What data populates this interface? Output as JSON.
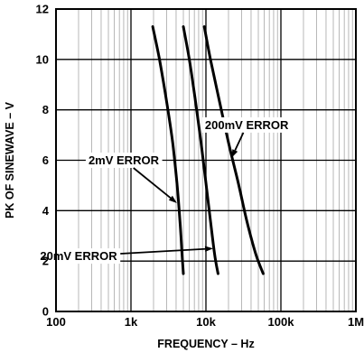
{
  "chart_data": {
    "type": "line",
    "title": "",
    "xlabel": "FREQUENCY – Hz",
    "ylabel": "PK OF SINEWAVE – V",
    "xscale": "log",
    "xlim": [
      100,
      1000000
    ],
    "ylim": [
      0,
      12
    ],
    "grid": true,
    "x_tick_labels": [
      {
        "value": 100,
        "label": "100"
      },
      {
        "value": 1000,
        "label": "1k"
      },
      {
        "value": 10000,
        "label": "10k"
      },
      {
        "value": 100000,
        "label": "100k"
      },
      {
        "value": 1000000,
        "label": "1M"
      }
    ],
    "y_tick_labels": [
      {
        "value": 0,
        "label": "0"
      },
      {
        "value": 2,
        "label": "2"
      },
      {
        "value": 4,
        "label": "4"
      },
      {
        "value": 6,
        "label": "6"
      },
      {
        "value": 8,
        "label": "8"
      },
      {
        "value": 10,
        "label": "10"
      },
      {
        "value": 12,
        "label": "12"
      }
    ],
    "series": [
      {
        "name": "2mV ERROR",
        "points": [
          [
            1950,
            11.3
          ],
          [
            2400,
            10
          ],
          [
            3000,
            8.3
          ],
          [
            3600,
            6.7
          ],
          [
            4100,
            5.1
          ],
          [
            4500,
            3.6
          ],
          [
            4800,
            2.3
          ],
          [
            5000,
            1.5
          ]
        ]
      },
      {
        "name": "20mV ERROR",
        "points": [
          [
            5000,
            11.3
          ],
          [
            6000,
            10
          ],
          [
            7200,
            8.4
          ],
          [
            8600,
            6.7
          ],
          [
            10000,
            5.1
          ],
          [
            11500,
            3.6
          ],
          [
            13000,
            2.3
          ],
          [
            14500,
            1.5
          ]
        ]
      },
      {
        "name": "200mV ERROR",
        "points": [
          [
            9500,
            11.3
          ],
          [
            11500,
            10
          ],
          [
            15000,
            8.4
          ],
          [
            20000,
            6.7
          ],
          [
            27000,
            5.1
          ],
          [
            35000,
            3.6
          ],
          [
            46000,
            2.3
          ],
          [
            58000,
            1.5
          ]
        ]
      }
    ],
    "annotations": [
      {
        "text": "2mV ERROR",
        "series": "2mV ERROR",
        "label_x": 800,
        "label_y": 6.0,
        "arrow_x": 4100,
        "arrow_y": 4.3
      },
      {
        "text": "20mV ERROR",
        "series": "20mV ERROR",
        "label_x": 200,
        "label_y": 2.2,
        "arrow_x": 12500,
        "arrow_y": 2.5
      },
      {
        "text": "200mV ERROR",
        "series": "200mV ERROR",
        "label_x": 35000,
        "label_y": 7.4,
        "arrow_x": 22000,
        "arrow_y": 6.1
      }
    ]
  }
}
